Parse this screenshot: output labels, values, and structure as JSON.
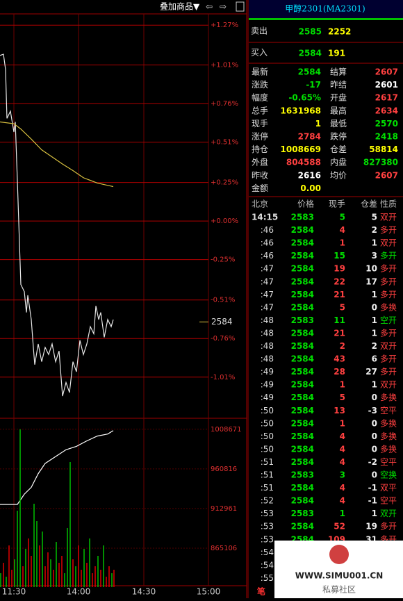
{
  "toolbar": {
    "overlay_button": "叠加商品▼",
    "back": "⇦",
    "forward": "⇨"
  },
  "header": {
    "title": "甲醇2301(MA2301)"
  },
  "orderbook": {
    "sell": {
      "label": "卖出",
      "price": 2585,
      "volume": 2252
    },
    "buy": {
      "label": "买入",
      "price": 2584,
      "volume": 191
    }
  },
  "quote": [
    {
      "label": "最新",
      "value": "2584",
      "color": "#00e000",
      "label2": "结算",
      "value2": "2607",
      "color2": "#ff4040"
    },
    {
      "label": "涨跌",
      "value": "-17",
      "color": "#00e000",
      "label2": "昨结",
      "value2": "2601",
      "color2": "#ffffff"
    },
    {
      "label": "幅度",
      "value": "-0.65%",
      "color": "#00e000",
      "label2": "开盘",
      "value2": "2617",
      "color2": "#ff4040"
    },
    {
      "label": "总手",
      "value": "1631968",
      "color": "#ffff00",
      "label2": "最高",
      "value2": "2634",
      "color2": "#ff4040"
    },
    {
      "label": "现手",
      "value": "1",
      "color": "#ffff00",
      "label2": "最低",
      "value2": "2570",
      "color2": "#00e000"
    },
    {
      "label": "涨停",
      "value": "2784",
      "color": "#ff4040",
      "label2": "跌停",
      "value2": "2418",
      "color2": "#00e000"
    },
    {
      "label": "持仓",
      "value": "1008669",
      "color": "#ffff00",
      "label2": "仓差",
      "value2": "58814",
      "color2": "#ffff00"
    },
    {
      "label": "外盘",
      "value": "804588",
      "color": "#ff4040",
      "label2": "内盘",
      "value2": "827380",
      "color2": "#00e000"
    },
    {
      "label": "昨收",
      "value": "2616",
      "color": "#ffffff",
      "label2": "均价",
      "value2": "2607",
      "color2": "#ff4040"
    },
    {
      "label": "金额",
      "value": "0.00",
      "color": "#ffff00"
    }
  ],
  "trades": {
    "columns": [
      "北京",
      "价格",
      "现手",
      "仓差",
      "性质"
    ],
    "rows": [
      {
        "time": "14:15",
        "price": "2583",
        "volume": "5",
        "oi": "5",
        "nature": "双开",
        "vcolor": "#00e000",
        "ncolor": "#ff4040"
      },
      {
        "time": ":46",
        "price": "2584",
        "volume": "4",
        "oi": "2",
        "nature": "多开",
        "vcolor": "#ff4040",
        "ncolor": "#ff4040"
      },
      {
        "time": ":46",
        "price": "2584",
        "volume": "1",
        "oi": "1",
        "nature": "双开",
        "vcolor": "#ff4040",
        "ncolor": "#ff4040"
      },
      {
        "time": ":46",
        "price": "2584",
        "volume": "15",
        "oi": "3",
        "nature": "多开",
        "vcolor": "#00e000",
        "ncolor": "#00e000"
      },
      {
        "time": ":47",
        "price": "2584",
        "volume": "19",
        "oi": "10",
        "nature": "多开",
        "vcolor": "#ff4040",
        "ncolor": "#ff4040"
      },
      {
        "time": ":47",
        "price": "2584",
        "volume": "22",
        "oi": "17",
        "nature": "多开",
        "vcolor": "#ff4040",
        "ncolor": "#ff4040"
      },
      {
        "time": ":47",
        "price": "2584",
        "volume": "21",
        "oi": "1",
        "nature": "多开",
        "vcolor": "#ff4040",
        "ncolor": "#ff4040"
      },
      {
        "time": ":47",
        "price": "2584",
        "volume": "5",
        "oi": "0",
        "nature": "多换",
        "vcolor": "#ff4040",
        "ncolor": "#ff4040"
      },
      {
        "time": ":48",
        "price": "2583",
        "volume": "11",
        "oi": "1",
        "nature": "空开",
        "vcolor": "#00e000",
        "ncolor": "#00e000"
      },
      {
        "time": ":48",
        "price": "2584",
        "volume": "21",
        "oi": "1",
        "nature": "多开",
        "vcolor": "#ff4040",
        "ncolor": "#ff4040"
      },
      {
        "time": ":48",
        "price": "2584",
        "volume": "2",
        "oi": "2",
        "nature": "双开",
        "vcolor": "#ff4040",
        "ncolor": "#ff4040"
      },
      {
        "time": ":48",
        "price": "2584",
        "volume": "43",
        "oi": "6",
        "nature": "多开",
        "vcolor": "#ff4040",
        "ncolor": "#ff4040"
      },
      {
        "time": ":49",
        "price": "2584",
        "volume": "28",
        "oi": "27",
        "nature": "多开",
        "vcolor": "#ff4040",
        "ncolor": "#ff4040"
      },
      {
        "time": ":49",
        "price": "2584",
        "volume": "1",
        "oi": "1",
        "nature": "双开",
        "vcolor": "#ff4040",
        "ncolor": "#ff4040"
      },
      {
        "time": ":49",
        "price": "2584",
        "volume": "5",
        "oi": "0",
        "nature": "多换",
        "vcolor": "#ff4040",
        "ncolor": "#ff4040"
      },
      {
        "time": ":50",
        "price": "2584",
        "volume": "13",
        "oi": "-3",
        "nature": "空平",
        "vcolor": "#ff4040",
        "ncolor": "#ff4040"
      },
      {
        "time": ":50",
        "price": "2584",
        "volume": "1",
        "oi": "0",
        "nature": "多换",
        "vcolor": "#ff4040",
        "ncolor": "#ff4040"
      },
      {
        "time": ":50",
        "price": "2584",
        "volume": "4",
        "oi": "0",
        "nature": "多换",
        "vcolor": "#ff4040",
        "ncolor": "#ff4040"
      },
      {
        "time": ":50",
        "price": "2584",
        "volume": "4",
        "oi": "0",
        "nature": "多换",
        "vcolor": "#ff4040",
        "ncolor": "#ff4040"
      },
      {
        "time": ":51",
        "price": "2584",
        "volume": "4",
        "oi": "-2",
        "nature": "空平",
        "vcolor": "#ff4040",
        "ncolor": "#ff4040"
      },
      {
        "time": ":51",
        "price": "2583",
        "volume": "3",
        "oi": "0",
        "nature": "空换",
        "vcolor": "#00e000",
        "ncolor": "#00e000"
      },
      {
        "time": ":51",
        "price": "2584",
        "volume": "4",
        "oi": "-1",
        "nature": "双平",
        "vcolor": "#ff4040",
        "ncolor": "#ff4040"
      },
      {
        "time": ":52",
        "price": "2584",
        "volume": "4",
        "oi": "-1",
        "nature": "空平",
        "vcolor": "#ff4040",
        "ncolor": "#ff4040"
      },
      {
        "time": ":53",
        "price": "2583",
        "volume": "1",
        "oi": "1",
        "nature": "双开",
        "vcolor": "#00e000",
        "ncolor": "#00e000"
      },
      {
        "time": ":53",
        "price": "2584",
        "volume": "52",
        "oi": "19",
        "nature": "多开",
        "vcolor": "#ff4040",
        "ncolor": "#ff4040"
      },
      {
        "time": ":53",
        "price": "2584",
        "volume": "109",
        "oi": "31",
        "nature": "多开",
        "vcolor": "#ff4040",
        "ncolor": "#ff4040"
      },
      {
        "time": ":54"
      },
      {
        "time": ":54"
      },
      {
        "time": ":55"
      }
    ]
  },
  "tab": "笔",
  "watermark": {
    "url": "WWW.SIMU001.CN",
    "caption": "私募社区"
  },
  "chart_data": [
    {
      "type": "line",
      "xlim": [
        0,
        300
      ],
      "xticks": [
        {
          "value": 20,
          "label": "11:30"
        },
        {
          "value": 113,
          "label": "14:00"
        },
        {
          "value": 207,
          "label": "14:30"
        },
        {
          "value": 300,
          "label": "15:00"
        }
      ],
      "ylim": [
        2568,
        2635.9
      ],
      "yticks": [
        {
          "value": 2634,
          "label": "+1.27%"
        },
        {
          "value": 2627.3,
          "label": "+1.01%"
        },
        {
          "value": 2620.8,
          "label": "+0.76%"
        },
        {
          "value": 2614.3,
          "label": "+0.51%"
        },
        {
          "value": 2607.5,
          "label": "+0.25%"
        },
        {
          "value": 2601,
          "label": "+0.00%"
        },
        {
          "value": 2594.5,
          "label": "-0.25%"
        },
        {
          "value": 2587.7,
          "label": "-0.51%"
        },
        {
          "value": 2581.2,
          "label": "-0.76%"
        },
        {
          "value": 2574.7,
          "label": "-1.01%"
        }
      ],
      "grid": true,
      "price_marker": 2584,
      "series": [
        {
          "color": "#e8e8e8",
          "x": [
            0,
            5,
            8,
            10,
            15,
            20,
            22,
            25,
            28,
            30,
            35,
            38,
            40,
            45,
            48,
            50,
            55,
            60,
            65,
            70,
            75,
            80,
            85,
            90,
            95,
            100,
            105,
            110,
            115,
            120,
            125,
            130,
            135,
            138,
            142,
            145,
            150,
            155,
            160,
            163
          ],
          "values": [
            2628.9,
            2629.1,
            2626.5,
            2618.3,
            2619.5,
            2616.0,
            2617.7,
            2607.8,
            2597.3,
            2590.3,
            2589.1,
            2585.6,
            2588.5,
            2584.4,
            2579.7,
            2576.8,
            2580.3,
            2577.3,
            2579.7,
            2578.5,
            2580.3,
            2577.3,
            2579.1,
            2571.5,
            2573.8,
            2572.1,
            2577.3,
            2575.6,
            2580.9,
            2578.5,
            2580.3,
            2583.2,
            2582.0,
            2586.7,
            2584.4,
            2585.6,
            2581.4,
            2584.4,
            2583.2,
            2584.4
          ]
        },
        {
          "color": "#d8c040",
          "x": [
            0,
            20,
            30,
            45,
            60,
            75,
            90,
            105,
            120,
            140,
            163
          ],
          "values": [
            2617.7,
            2617.4,
            2616.5,
            2614.8,
            2613.0,
            2611.8,
            2610.6,
            2609.5,
            2608.3,
            2607.4,
            2606.8
          ]
        }
      ]
    },
    {
      "type": "line",
      "xlim": [
        0,
        300
      ],
      "ylim": [
        818081,
        1019396
      ],
      "yticks": [
        1008671,
        960816,
        912961,
        865106
      ],
      "series": [
        {
          "color": "#ffffff",
          "x": [
            0,
            25,
            35,
            45,
            55,
            65,
            80,
            95,
            110,
            125,
            140,
            155,
            163
          ],
          "values": [
            917911,
            917911,
            930286,
            938536,
            955036,
            967411,
            975661,
            983911,
            988036,
            994636,
            1000411,
            1002886,
            1007021
          ]
        }
      ]
    },
    {
      "type": "bar",
      "xlim": [
        0,
        300
      ],
      "ylim": [
        0,
        240
      ],
      "x": [
        1,
        5,
        9,
        13,
        17,
        21,
        25,
        29,
        33,
        37,
        41,
        45,
        49,
        53,
        57,
        61,
        65,
        69,
        73,
        77,
        81,
        85,
        89,
        93,
        97,
        101,
        105,
        109,
        113,
        117,
        121,
        125,
        129,
        133,
        137,
        141,
        145,
        149,
        153,
        157,
        161,
        164
      ],
      "values": [
        20,
        35,
        15,
        60,
        25,
        40,
        110,
        227,
        30,
        55,
        70,
        45,
        120,
        95,
        60,
        80,
        30,
        50,
        40,
        25,
        65,
        35,
        45,
        20,
        85,
        180,
        40,
        30,
        60,
        25,
        55,
        35,
        70,
        20,
        30,
        45,
        25,
        60,
        15,
        30,
        20,
        25
      ],
      "colors": [
        "#00c000",
        "#e00000",
        "#00c000",
        "#e00000",
        "#e00000",
        "#00c000",
        "#00c000",
        "#00c000",
        "#e00000",
        "#00c000",
        "#e00000",
        "#e00000",
        "#00c000",
        "#00c000",
        "#e00000",
        "#00c000",
        "#e00000",
        "#e00000",
        "#00c000",
        "#e00000",
        "#00c000",
        "#e00000",
        "#e00000",
        "#00c000",
        "#00c000",
        "#00c000",
        "#e00000",
        "#00c000",
        "#e00000",
        "#e00000",
        "#00c000",
        "#e00000",
        "#00c000",
        "#e00000",
        "#e00000",
        "#00c000",
        "#e00000",
        "#00c000",
        "#e00000",
        "#e00000",
        "#00c000",
        "#e00000"
      ]
    }
  ]
}
